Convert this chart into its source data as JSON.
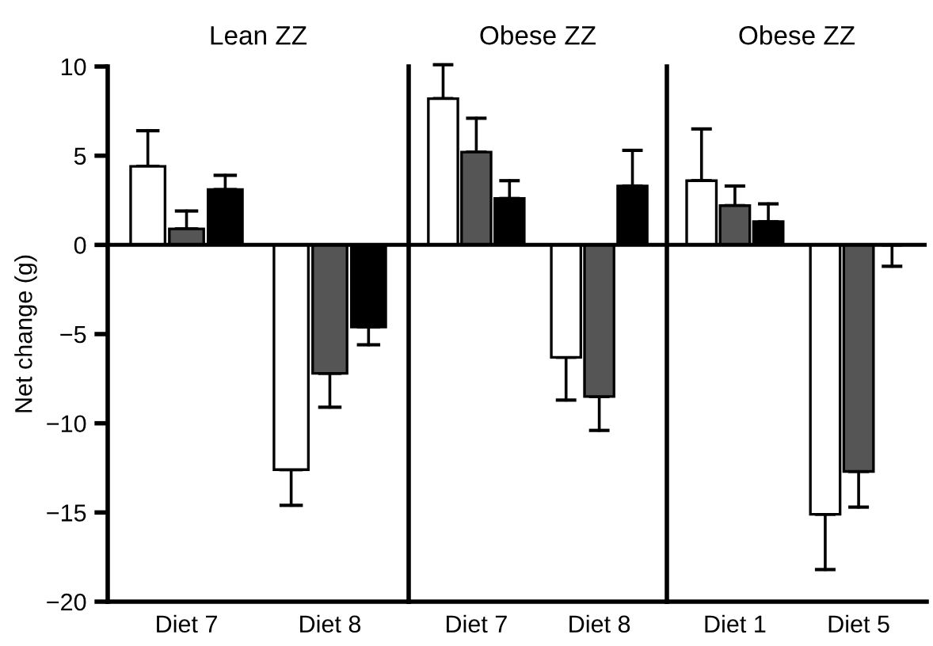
{
  "chart_data": [
    {
      "type": "bar",
      "title": "Lean ZZ",
      "ylabel": "Net change (g)",
      "categories": [
        "Diet 7",
        "Diet 8"
      ],
      "ylim": [
        -20,
        10
      ],
      "yticks": [
        {
          "value": -20,
          "label": "−20"
        },
        {
          "value": -15,
          "label": "−15"
        },
        {
          "value": -10,
          "label": "−10"
        },
        {
          "value": -5,
          "label": "−5"
        },
        0,
        5,
        10
      ],
      "ref_lines": [
        {
          "axis": "y",
          "value": 0
        }
      ],
      "series": [
        {
          "color": "#ffffff",
          "values": [
            4.4,
            -12.6
          ],
          "errors": [
            [
              4.4,
              6.4
            ],
            [
              -14.6,
              -12.6
            ]
          ]
        },
        {
          "color": "#555555",
          "values": [
            0.9,
            -7.2
          ],
          "errors": [
            [
              0.9,
              1.9
            ],
            [
              -9.1,
              -7.2
            ]
          ]
        },
        {
          "color": "#000000",
          "values": [
            3.1,
            -4.6
          ],
          "errors": [
            [
              3.1,
              3.9
            ],
            [
              -5.6,
              -4.6
            ]
          ]
        }
      ]
    },
    {
      "type": "bar",
      "title": "Obese ZZ",
      "categories": [
        "Diet 7",
        "Diet 8"
      ],
      "ylim": [
        -20,
        10
      ],
      "tick_labels": "x",
      "ref_lines": [
        {
          "axis": "y",
          "value": 0
        }
      ],
      "series": [
        {
          "color": "#ffffff",
          "values": [
            8.2,
            -6.3
          ],
          "errors": [
            [
              8.2,
              10.1
            ],
            [
              -8.7,
              -6.3
            ]
          ]
        },
        {
          "color": "#555555",
          "values": [
            5.2,
            -8.5
          ],
          "errors": [
            [
              5.2,
              7.1
            ],
            [
              -10.4,
              -8.5
            ]
          ]
        },
        {
          "color": "#000000",
          "values": [
            2.6,
            3.3
          ],
          "errors": [
            [
              2.6,
              3.6
            ],
            [
              3.3,
              5.3
            ]
          ]
        }
      ]
    },
    {
      "type": "bar",
      "title": "Obese ZZ",
      "categories": [
        "Diet 1",
        "Diet 5"
      ],
      "ylim": [
        -20,
        10
      ],
      "tick_labels": "x",
      "ref_lines": [
        {
          "axis": "y",
          "value": 0
        }
      ],
      "series": [
        {
          "color": "#ffffff",
          "values": [
            3.6,
            -15.1
          ],
          "errors": [
            [
              3.6,
              6.5
            ],
            [
              -18.2,
              -15.1
            ]
          ]
        },
        {
          "color": "#555555",
          "values": [
            2.2,
            -12.7
          ],
          "errors": [
            [
              2.2,
              3.3
            ],
            [
              -14.7,
              -12.7
            ]
          ]
        },
        {
          "color": "#000000",
          "values": [
            1.3,
            0
          ],
          "errors": [
            [
              1.3,
              2.3
            ],
            [
              -1.2,
              0
            ]
          ]
        }
      ]
    }
  ]
}
